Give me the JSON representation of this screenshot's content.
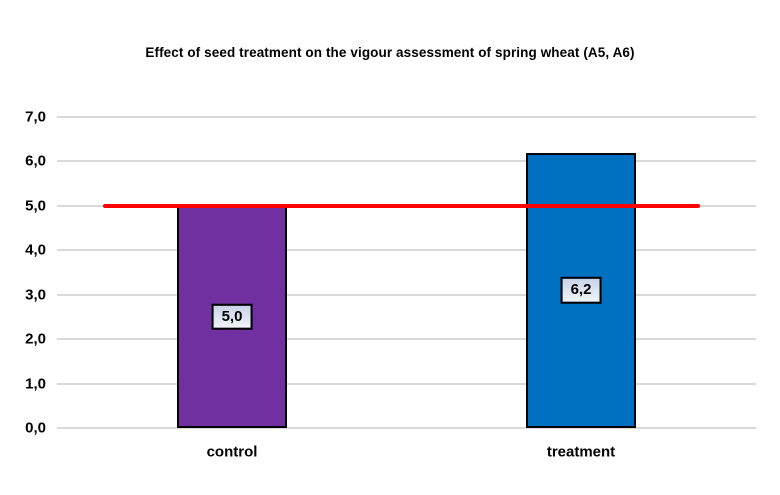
{
  "title": "Effect of seed treatment on the vigour assessment of spring wheat (A5, A6)",
  "colors": {
    "background": "#FFFFFF",
    "gridline": "#D9D9D9",
    "text": "#000000",
    "bar_border": "#000000",
    "bar_colors": [
      "#7030A0",
      "#0070C0"
    ],
    "reference_line": "#FF0000",
    "label_box_border": "#000000",
    "label_box_bg_top": "#C9D4E8",
    "label_box_bg_bottom": "#F0F3F9"
  },
  "chart_data": {
    "type": "bar",
    "title": "Effect of seed treatment on the vigour assessment of spring wheat (A5, A6)",
    "categories": [
      "control",
      "treatment"
    ],
    "values": [
      5.0,
      6.2
    ],
    "data_labels": [
      "5,0",
      "6,2"
    ],
    "series_names": [
      "control",
      "treatment"
    ],
    "xlabel": "",
    "ylabel": "",
    "ylim": [
      0,
      7
    ],
    "y_tick_step": 1,
    "y_ticks": [
      "0,0",
      "1,0",
      "2,0",
      "3,0",
      "4,0",
      "5,0",
      "6,0",
      "7,0"
    ],
    "decimal_separator": ",",
    "grid": "horizontal",
    "legend": "none",
    "reference_line_value": 5.0
  }
}
